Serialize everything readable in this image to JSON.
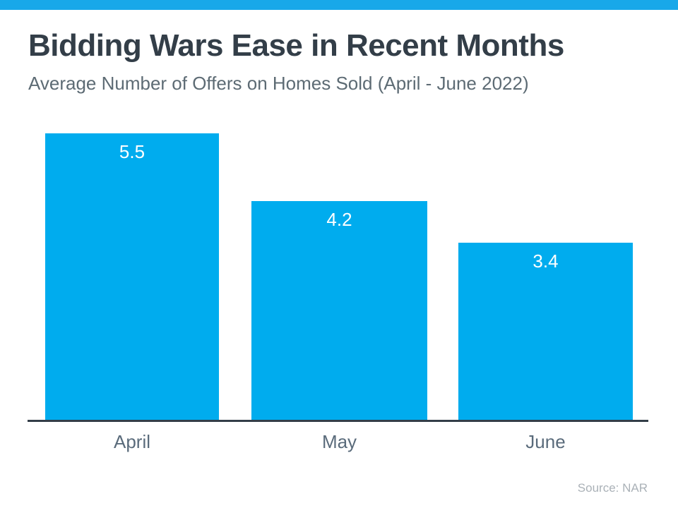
{
  "page": {
    "title": "Bidding Wars Ease in Recent Months",
    "subtitle": "Average Number of Offers on Homes Sold (April - June 2022)",
    "source": "Source: NAR"
  },
  "chart_data": {
    "type": "bar",
    "title": "Bidding Wars Ease in Recent Months",
    "subtitle": "Average Number of Offers on Homes Sold (April - June 2022)",
    "categories": [
      "April",
      "May",
      "June"
    ],
    "values": [
      5.5,
      4.2,
      3.4
    ],
    "value_labels": [
      "5.5",
      "4.2",
      "3.4"
    ],
    "xlabel": "",
    "ylabel": "",
    "ylim": [
      0,
      5.5
    ],
    "grid": false,
    "legend": false,
    "value_label_position": "inside-top",
    "source": "Source: NAR",
    "bar_color": "#00ACEE",
    "accent_color": "#18A8E9",
    "title_color": "#333E48",
    "subtitle_color": "#5D6B74",
    "axis_color": "#333E48",
    "category_label_color": "#5A6B7B",
    "source_color": "#AAB1B7"
  }
}
